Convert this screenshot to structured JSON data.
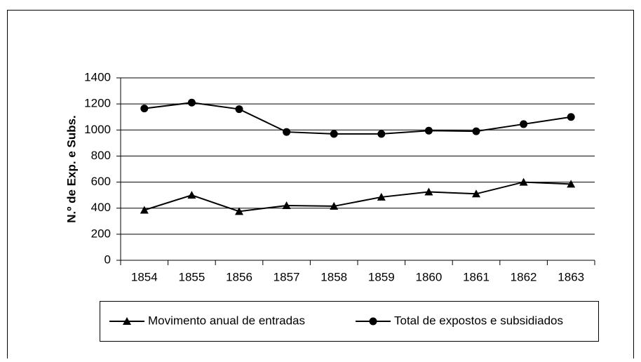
{
  "chart_data": {
    "type": "line",
    "y_label": "N.º de Exp. e Subs.",
    "categories": [
      "1854",
      "1855",
      "1856",
      "1857",
      "1858",
      "1859",
      "1860",
      "1861",
      "1862",
      "1863"
    ],
    "series": [
      {
        "name": "Movimento anual de entradas",
        "color": "#000000",
        "marker": "triangle",
        "values": [
          385,
          500,
          375,
          420,
          415,
          485,
          525,
          510,
          600,
          585
        ]
      },
      {
        "name": "Total de expostos e subsidiados",
        "color": "#000000",
        "marker": "circle",
        "values": [
          1165,
          1210,
          1160,
          985,
          970,
          970,
          995,
          990,
          1045,
          1100
        ]
      }
    ],
    "ylim": [
      0,
      1400
    ],
    "yticks": [
      0,
      200,
      400,
      600,
      800,
      1000,
      1200,
      1400
    ],
    "grid": true,
    "legend": "bottom"
  }
}
